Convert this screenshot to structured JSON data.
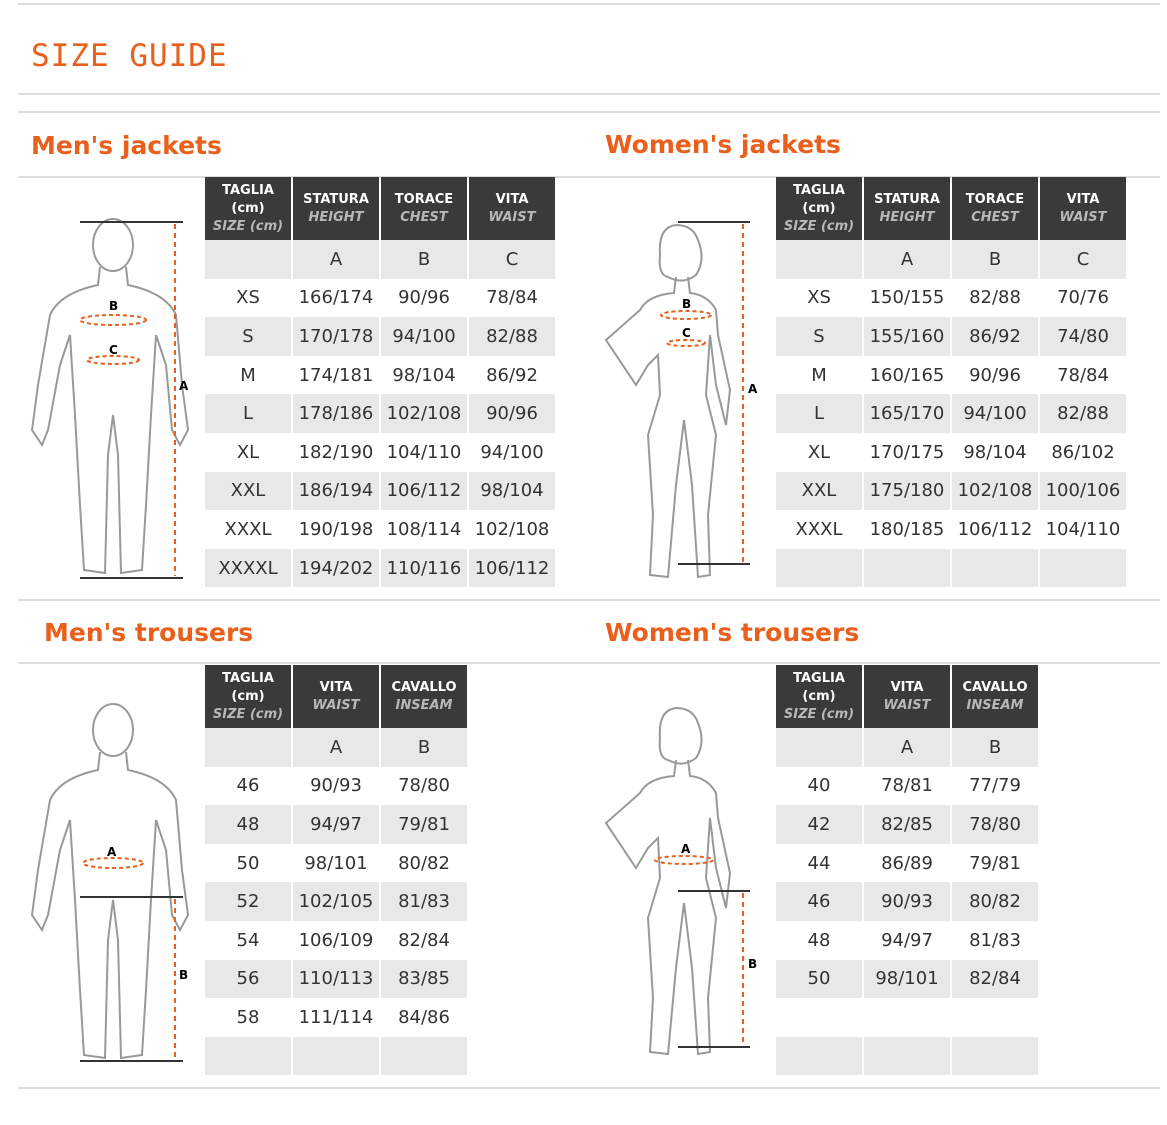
{
  "title": "SIZE GUIDE",
  "colors": {
    "accent": "#e8601c",
    "header_bg": "#3a3a3a",
    "shaded_row": "#e8e8e8"
  },
  "sections": [
    {
      "title": "Men's jackets",
      "figure": "male-figure-jacket",
      "headers": [
        [
          "TAGLIA (cm)",
          "SIZE (cm)"
        ],
        [
          "STATURA",
          "HEIGHT"
        ],
        [
          "TORACE",
          "CHEST"
        ],
        [
          "VITA",
          "WAIST"
        ]
      ],
      "letters": [
        "",
        "A",
        "B",
        "C"
      ],
      "rows": [
        [
          "XS",
          "166/174",
          "90/96",
          "78/84"
        ],
        [
          "S",
          "170/178",
          "94/100",
          "82/88"
        ],
        [
          "M",
          "174/181",
          "98/104",
          "86/92"
        ],
        [
          "L",
          "178/186",
          "102/108",
          "90/96"
        ],
        [
          "XL",
          "182/190",
          "104/110",
          "94/100"
        ],
        [
          "XXL",
          "186/194",
          "106/112",
          "98/104"
        ],
        [
          "XXXL",
          "190/198",
          "108/114",
          "102/108"
        ],
        [
          "XXXXL",
          "194/202",
          "110/116",
          "106/112"
        ]
      ],
      "labels": [
        "A",
        "B",
        "C"
      ]
    },
    {
      "title": "Women's jackets",
      "figure": "female-figure-jacket",
      "headers": [
        [
          "TAGLIA (cm)",
          "SIZE (cm)"
        ],
        [
          "STATURA",
          "HEIGHT"
        ],
        [
          "TORACE",
          "CHEST"
        ],
        [
          "VITA",
          "WAIST"
        ]
      ],
      "letters": [
        "",
        "A",
        "B",
        "C"
      ],
      "rows": [
        [
          "XS",
          "150/155",
          "82/88",
          "70/76"
        ],
        [
          "S",
          "155/160",
          "86/92",
          "74/80"
        ],
        [
          "M",
          "160/165",
          "90/96",
          "78/84"
        ],
        [
          "L",
          "165/170",
          "94/100",
          "82/88"
        ],
        [
          "XL",
          "170/175",
          "98/104",
          "86/102"
        ],
        [
          "XXL",
          "175/180",
          "102/108",
          "100/106"
        ],
        [
          "XXXL",
          "180/185",
          "106/112",
          "104/110"
        ],
        [
          "",
          "",
          "",
          ""
        ]
      ],
      "labels": [
        "A",
        "B",
        "C"
      ]
    },
    {
      "title": "Men's trousers",
      "figure": "male-figure-trousers",
      "headers": [
        [
          "TAGLIA (cm)",
          "SIZE (cm)"
        ],
        [
          "VITA",
          "WAIST"
        ],
        [
          "CAVALLO",
          "INSEAM"
        ]
      ],
      "letters": [
        "",
        "A",
        "B"
      ],
      "rows": [
        [
          "46",
          "90/93",
          "78/80"
        ],
        [
          "48",
          "94/97",
          "79/81"
        ],
        [
          "50",
          "98/101",
          "80/82"
        ],
        [
          "52",
          "102/105",
          "81/83"
        ],
        [
          "54",
          "106/109",
          "82/84"
        ],
        [
          "56",
          "110/113",
          "83/85"
        ],
        [
          "58",
          "111/114",
          "84/86"
        ],
        [
          "",
          "",
          ""
        ]
      ],
      "labels": [
        "A",
        "B"
      ]
    },
    {
      "title": "Women's trousers",
      "figure": "female-figure-trousers",
      "headers": [
        [
          "TAGLIA (cm)",
          "SIZE (cm)"
        ],
        [
          "VITA",
          "WAIST"
        ],
        [
          "CAVALLO",
          "INSEAM"
        ]
      ],
      "letters": [
        "",
        "A",
        "B"
      ],
      "rows": [
        [
          "40",
          "78/81",
          "77/79"
        ],
        [
          "42",
          "82/85",
          "78/80"
        ],
        [
          "44",
          "86/89",
          "79/81"
        ],
        [
          "46",
          "90/93",
          "80/82"
        ],
        [
          "48",
          "94/97",
          "81/83"
        ],
        [
          "50",
          "98/101",
          "82/84"
        ],
        [
          "",
          "",
          ""
        ],
        [
          "",
          "",
          ""
        ]
      ],
      "labels": [
        "A",
        "B"
      ]
    }
  ]
}
